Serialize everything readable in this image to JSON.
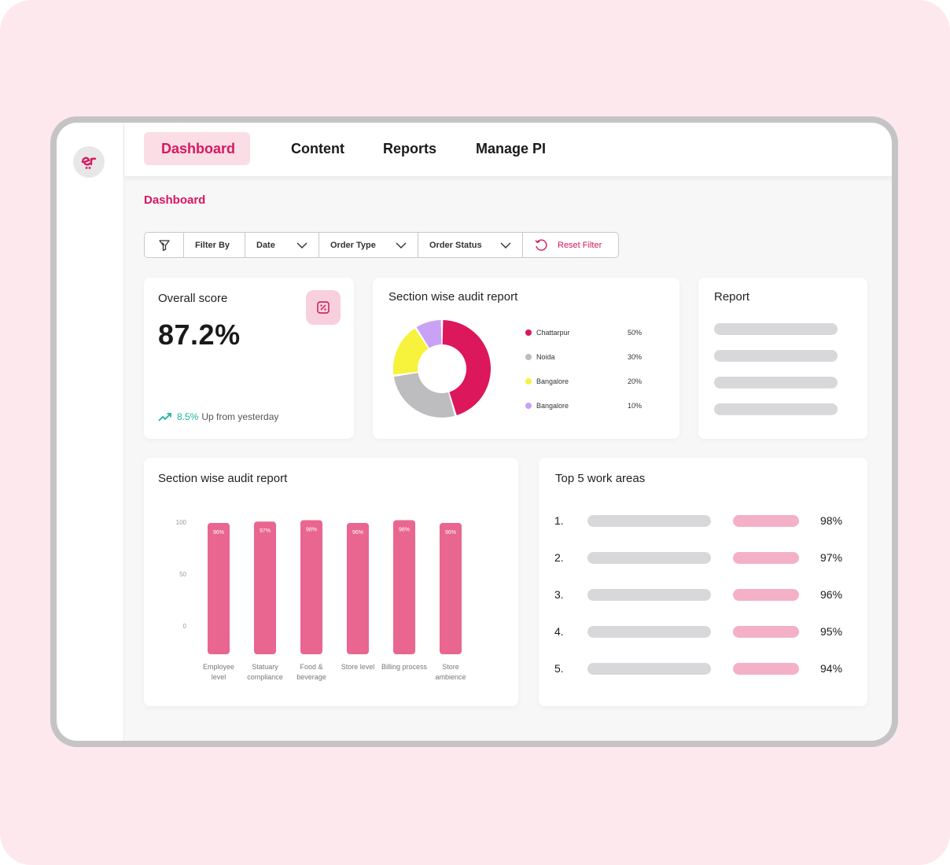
{
  "nav": {
    "items": [
      "Dashboard",
      "Content",
      "Reports",
      "Manage PI"
    ],
    "active": "Dashboard"
  },
  "breadcrumb": "Dashboard",
  "filters": {
    "filter_by": "Filter By",
    "date": "Date",
    "order_type": "Order Type",
    "order_status": "Order Status",
    "reset": "Reset Filter"
  },
  "score_card": {
    "title": "Overall score",
    "value": "87.2%",
    "change": "8.5%",
    "change_text": "Up from yesterday"
  },
  "donut_card": {
    "title": "Section wise audit report",
    "legend": [
      {
        "label": "Chattarpur",
        "value": "50%",
        "color": "#dc175c"
      },
      {
        "label": "Noida",
        "value": "30%",
        "color": "#bdbdbf"
      },
      {
        "label": "Bangalore",
        "value": "20%",
        "color": "#f7f23c"
      },
      {
        "label": "Bangalore",
        "value": "10%",
        "color": "#c9a2f5"
      }
    ]
  },
  "report_card": {
    "title": "Report"
  },
  "bar_card": {
    "title": "Section wise audit report"
  },
  "top_areas": {
    "title": "Top 5 work areas",
    "items": [
      {
        "rank": "1.",
        "value": "98%"
      },
      {
        "rank": "2.",
        "value": "97%"
      },
      {
        "rank": "3.",
        "value": "96%"
      },
      {
        "rank": "4.",
        "value": "95%"
      },
      {
        "rank": "5.",
        "value": "94%"
      }
    ]
  },
  "colors": {
    "accent": "#d8175f",
    "bar": "#e86690",
    "skeleton": "#d8d8da",
    "skeleton_pink": "#f3b0c6"
  },
  "chart_data": [
    {
      "type": "pie",
      "title": "Section wise audit report",
      "categories": [
        "Chattarpur",
        "Noida",
        "Bangalore",
        "Bangalore"
      ],
      "values": [
        50,
        30,
        20,
        10
      ],
      "colors": [
        "#dc175c",
        "#bdbdbf",
        "#f7f23c",
        "#c9a2f5"
      ],
      "legend": "right"
    },
    {
      "type": "bar",
      "title": "Section wise audit report",
      "categories": [
        "Employee level",
        "Statuary compliance",
        "Food & beverage",
        "Store level",
        "Billing process",
        "Store ambience"
      ],
      "values": [
        96,
        97,
        98,
        96,
        98,
        96
      ],
      "data_labels": [
        "96%",
        "97%",
        "98%",
        "96%",
        "98%",
        "96%"
      ],
      "yticks": [
        "100",
        "50",
        "0"
      ],
      "ylim": [
        0,
        100
      ],
      "grid": false
    }
  ]
}
